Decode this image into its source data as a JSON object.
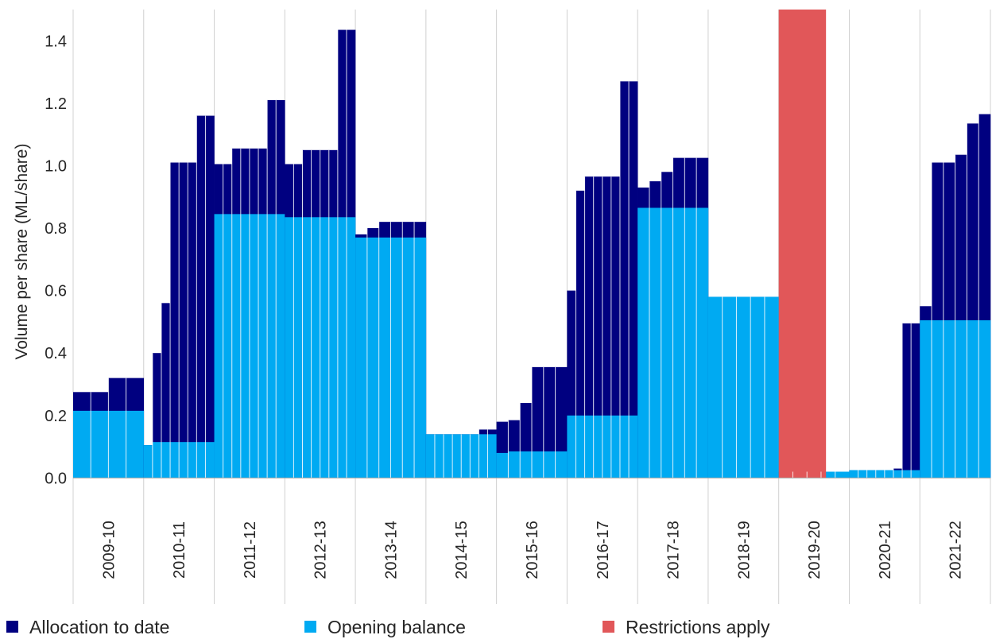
{
  "chart_data": {
    "type": "bar",
    "stacked": true,
    "ylabel": "Volume per share (ML/share)",
    "ylim": [
      -0.05,
      1.5
    ],
    "yticks": [
      0.0,
      0.2,
      0.4,
      0.6,
      0.8,
      1.0,
      1.2,
      1.4
    ],
    "ytick_labels": [
      "0.0",
      "0.2",
      "0.4",
      "0.6",
      "0.8",
      "1.0",
      "1.2",
      "1.4"
    ],
    "categories": [
      "2009-10",
      "2010-11",
      "2011-12",
      "2012-13",
      "2013-14",
      "2014-15",
      "2015-16",
      "2016-17",
      "2017-18",
      "2018-19",
      "2019-20",
      "2020-21",
      "2021-22"
    ],
    "colors": {
      "allocation": "#000080",
      "opening": "#00AAF2",
      "restriction": "#E15759",
      "grid": "#d0d0d0",
      "axis": "#a6a6a6"
    },
    "series": [
      {
        "name": "Allocation to date",
        "values": [
          [
            0.275,
            0.275,
            0.32,
            0.32
          ],
          [
            0.105,
            0.4,
            0.56,
            1.01,
            1.01,
            1.01,
            1.16,
            1.16
          ],
          [
            1.005,
            1.005,
            1.055,
            1.055,
            1.055,
            1.055,
            1.21,
            1.21
          ],
          [
            1.005,
            1.005,
            1.05,
            1.05,
            1.05,
            1.05,
            1.435,
            1.435
          ],
          [
            0.78,
            0.8,
            0.82,
            0.82,
            0.82,
            0.82
          ],
          [
            0.14,
            0.14,
            0.14,
            0.14,
            0.14,
            0.14,
            0.155,
            0.155
          ],
          [
            0.18,
            0.185,
            0.24,
            0.355,
            0.355,
            0.355
          ],
          [
            0.6,
            0.92,
            0.965,
            0.965,
            0.965,
            0.965,
            1.27,
            1.27
          ],
          [
            0.93,
            0.95,
            0.98,
            1.025,
            1.025,
            1.025
          ],
          [
            0.58,
            0.58,
            0.58,
            0.58,
            0.58
          ],
          [
            0.02,
            0.02,
            0.02,
            0.02,
            0.02
          ],
          [
            0.025,
            0.025,
            0.025,
            0.025,
            0.025,
            0.03,
            0.495,
            0.495
          ],
          [
            0.55,
            1.01,
            1.01,
            1.035,
            1.135,
            1.165
          ]
        ]
      },
      {
        "name": "Opening balance",
        "values": [
          [
            0.215,
            0.215,
            0.215,
            0.215
          ],
          [
            0.105,
            0.115,
            0.115,
            0.115,
            0.115,
            0.115,
            0.115,
            0.115
          ],
          [
            0.845,
            0.845,
            0.845,
            0.845,
            0.845,
            0.845,
            0.845,
            0.845
          ],
          [
            0.835,
            0.835,
            0.835,
            0.835,
            0.835,
            0.835,
            0.835,
            0.835
          ],
          [
            0.77,
            0.77,
            0.77,
            0.77,
            0.77,
            0.77
          ],
          [
            0.14,
            0.14,
            0.14,
            0.14,
            0.14,
            0.14,
            0.14,
            0.14
          ],
          [
            0.08,
            0.085,
            0.085,
            0.085,
            0.085,
            0.085
          ],
          [
            0.2,
            0.2,
            0.2,
            0.2,
            0.2,
            0.2,
            0.2,
            0.2
          ],
          [
            0.865,
            0.865,
            0.865,
            0.865,
            0.865,
            0.865
          ],
          [
            0.58,
            0.58,
            0.58,
            0.58,
            0.58
          ],
          [
            0.02,
            0.02,
            0.02,
            0.02,
            0.02
          ],
          [
            0.025,
            0.025,
            0.025,
            0.025,
            0.025,
            0.025,
            0.025,
            0.025
          ],
          [
            0.505,
            0.505,
            0.505,
            0.505,
            0.505,
            0.505
          ]
        ]
      }
    ],
    "restrictions": [
      {
        "category": "2019-20",
        "start": 0.0,
        "end": 0.67
      }
    ],
    "legend": {
      "position": "bottom",
      "items": [
        {
          "label": "Allocation to date",
          "color": "#000080"
        },
        {
          "label": "Opening balance",
          "color": "#00AAF2"
        },
        {
          "label": "Restrictions apply",
          "color": "#E15759"
        }
      ]
    }
  }
}
